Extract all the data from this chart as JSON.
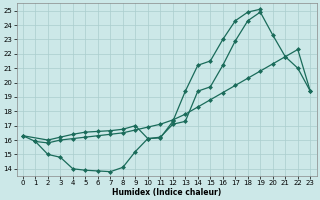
{
  "xlabel": "Humidex (Indice chaleur)",
  "bg_color": "#cce8e8",
  "grid_color": "#aacece",
  "line_color": "#1a6b5a",
  "xlim": [
    -0.5,
    23.5
  ],
  "ylim": [
    13.5,
    25.5
  ],
  "yticks": [
    14,
    15,
    16,
    17,
    18,
    19,
    20,
    21,
    22,
    23,
    24,
    25
  ],
  "xticks": [
    0,
    1,
    2,
    3,
    4,
    5,
    6,
    7,
    8,
    9,
    10,
    11,
    12,
    13,
    14,
    15,
    16,
    17,
    18,
    19,
    20,
    21,
    22,
    23
  ],
  "curve1_x": [
    0,
    1,
    2,
    3,
    4,
    5,
    6,
    7,
    8,
    9,
    10,
    11,
    12,
    13,
    14,
    15,
    16,
    17,
    18,
    19,
    20,
    21,
    22,
    23
  ],
  "curve1_y": [
    16.3,
    15.9,
    15.0,
    14.8,
    14.0,
    13.9,
    13.85,
    13.8,
    14.1,
    15.2,
    16.1,
    16.2,
    17.1,
    17.3,
    19.4,
    19.7,
    21.2,
    22.9,
    24.3,
    24.9,
    23.3,
    21.8,
    21.0,
    19.4
  ],
  "curve2_x": [
    0,
    2,
    3,
    4,
    5,
    6,
    7,
    8,
    9,
    10,
    11,
    12,
    13,
    14,
    15,
    16,
    17,
    18,
    19
  ],
  "curve2_y": [
    16.3,
    16.0,
    16.2,
    16.4,
    16.55,
    16.6,
    16.65,
    16.75,
    17.0,
    16.1,
    16.15,
    17.3,
    19.4,
    21.2,
    21.5,
    23.0,
    24.3,
    24.9,
    25.1
  ],
  "curve3_x": [
    1,
    2,
    3,
    4,
    5,
    6,
    7,
    8,
    9,
    10,
    11,
    12,
    13,
    14,
    15,
    16,
    17,
    18,
    19,
    20,
    21,
    22,
    23
  ],
  "curve3_y": [
    15.9,
    15.8,
    16.0,
    16.1,
    16.2,
    16.3,
    16.4,
    16.5,
    16.7,
    16.9,
    17.1,
    17.4,
    17.8,
    18.3,
    18.8,
    19.3,
    19.8,
    20.3,
    20.8,
    21.3,
    21.8,
    22.3,
    19.4
  ]
}
